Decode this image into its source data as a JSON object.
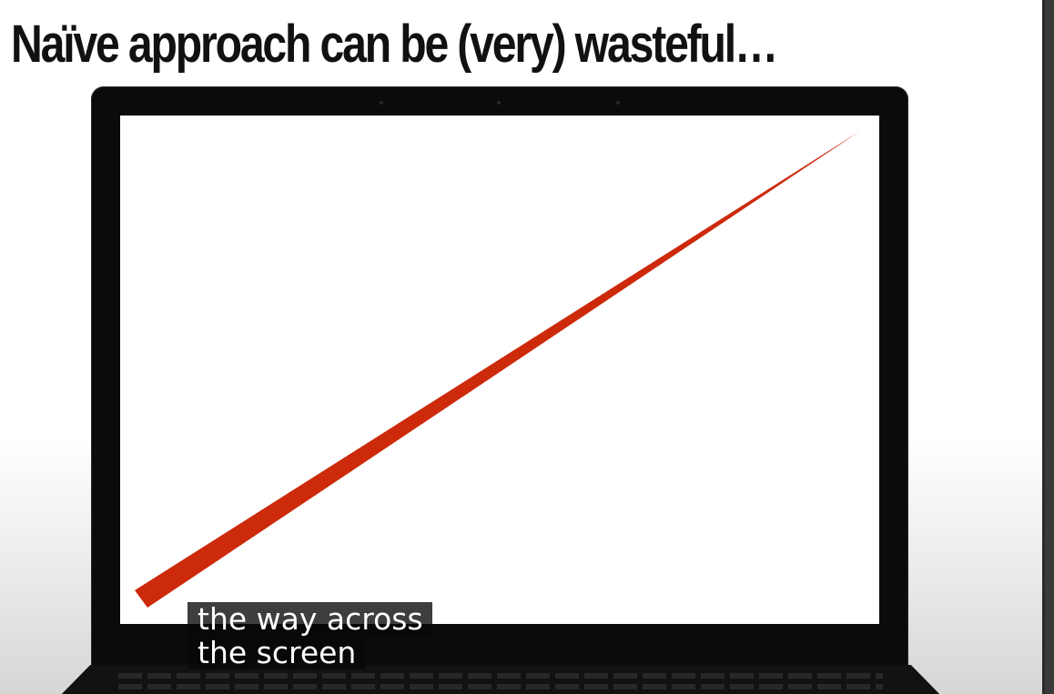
{
  "slide": {
    "title": "Naïve approach can be (very) wasteful…"
  },
  "screen_content": {
    "line_color": "#cc2a0b"
  },
  "captions": {
    "lines": [
      "the way across",
      "the screen"
    ]
  }
}
